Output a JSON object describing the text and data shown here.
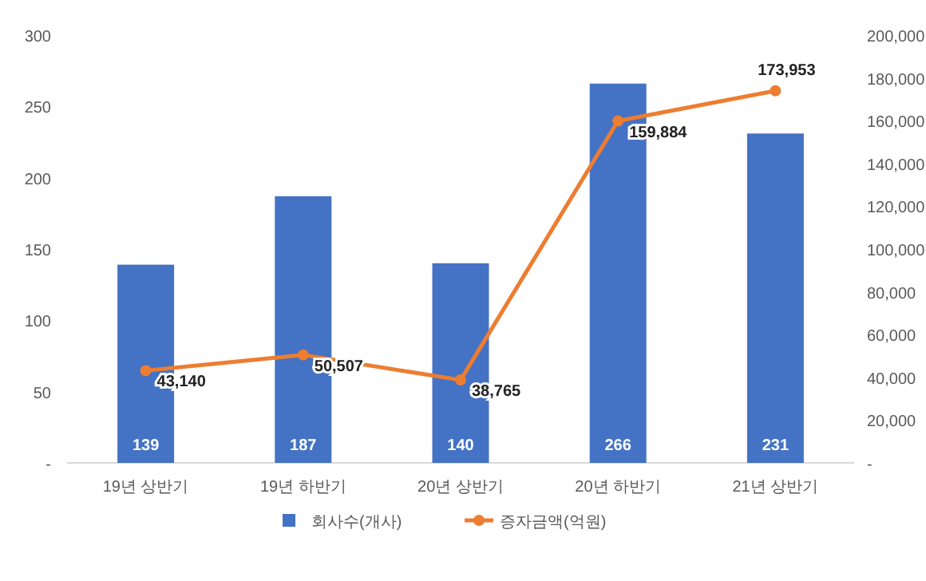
{
  "chart_data": {
    "type": "bar",
    "categories": [
      "19년 상반기",
      "19년 하반기",
      "20년 상반기",
      "20년 하반기",
      "21년 상반기"
    ],
    "series": [
      {
        "name": "회사수(개사)",
        "color": "#4472c4",
        "values": [
          139,
          187,
          140,
          266,
          231
        ],
        "value_labels": [
          "139",
          "187",
          "140",
          "266",
          "231"
        ]
      },
      {
        "name": "증자금액(억원)",
        "type": "line",
        "axis": "y2",
        "color": "#ed7d31",
        "values": [
          43140,
          50507,
          38765,
          159884,
          173953
        ],
        "value_labels": [
          "43,140",
          "50,507",
          "38,765",
          "159,884",
          "173,953"
        ]
      }
    ],
    "ylim": [
      0,
      300
    ],
    "yticks": [
      {
        "value": 0,
        "label": "-"
      },
      50,
      100,
      150,
      200,
      250,
      300
    ],
    "y2lim": [
      0,
      200000
    ],
    "y2ticks": [
      {
        "value": 0,
        "label": "-"
      },
      {
        "value": 20000,
        "label": "20,000"
      },
      {
        "value": 40000,
        "label": "40,000"
      },
      {
        "value": 60000,
        "label": "60,000"
      },
      {
        "value": 80000,
        "label": "80,000"
      },
      {
        "value": 100000,
        "label": "100,000"
      },
      {
        "value": 120000,
        "label": "120,000"
      },
      {
        "value": 140000,
        "label": "140,000"
      },
      {
        "value": 160000,
        "label": "160,000"
      },
      {
        "value": 180000,
        "label": "180,000"
      },
      {
        "value": 200000,
        "label": "200,000"
      }
    ],
    "legend": "bottom",
    "marker": "circle",
    "grid": false
  }
}
